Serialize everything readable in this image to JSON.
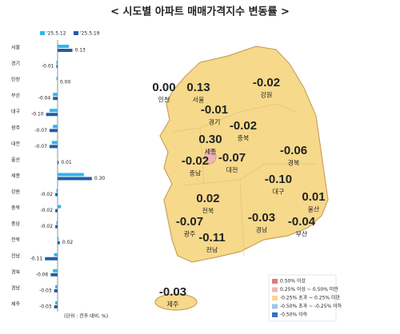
{
  "title": "< 시도별 아파트 매매가격지수 변동률 >",
  "chart_data": {
    "type": "hbar",
    "categories": [
      "서울",
      "경기",
      "인천",
      "부산",
      "대구",
      "광주",
      "대전",
      "울산",
      "세종",
      "강원",
      "충북",
      "충남",
      "전북",
      "전남",
      "경북",
      "경남",
      "제주"
    ],
    "series": [
      {
        "name": "'25.5.12",
        "color": "#35b4ec",
        "values": [
          0.1,
          -0.01,
          -0.01,
          -0.04,
          -0.07,
          -0.04,
          -0.05,
          0.0,
          0.23,
          -0.01,
          0.03,
          -0.01,
          0.01,
          -0.03,
          -0.04,
          -0.02,
          -0.02
        ]
      },
      {
        "name": "'25.5.19",
        "color": "#1f5fa8",
        "values": [
          0.13,
          -0.01,
          0.0,
          -0.04,
          -0.1,
          -0.07,
          -0.07,
          0.01,
          0.3,
          -0.02,
          -0.02,
          -0.02,
          0.02,
          -0.11,
          -0.06,
          -0.03,
          -0.03
        ],
        "value_labels": [
          "0.13",
          "-0.01",
          "0.00",
          "-0.04",
          "-0.10",
          "-0.07",
          "-0.07",
          "0.01",
          "0.30",
          "-0.02",
          "-0.02",
          "-0.02",
          "0.02",
          "-0.11",
          "-0.06",
          "-0.03",
          "-0.03"
        ]
      }
    ],
    "xlim": [
      -0.3,
      0.35
    ],
    "note": "(단위 : 전주 대비, %)"
  },
  "map": {
    "regions": [
      {
        "name": "인천",
        "value_label": "0.00"
      },
      {
        "name": "서울",
        "value_label": "0.13"
      },
      {
        "name": "경기",
        "value_label": "-0.01"
      },
      {
        "name": "강원",
        "value_label": "-0.02"
      },
      {
        "name": "충북",
        "value_label": "-0.02"
      },
      {
        "name": "세종",
        "value_label": "0.30"
      },
      {
        "name": "대전",
        "value_label": "-0.07"
      },
      {
        "name": "충남",
        "value_label": "-0.02"
      },
      {
        "name": "경북",
        "value_label": "-0.06"
      },
      {
        "name": "대구",
        "value_label": "-0.10"
      },
      {
        "name": "울산",
        "value_label": "0.01"
      },
      {
        "name": "전북",
        "value_label": "0.02"
      },
      {
        "name": "경남",
        "value_label": "-0.03"
      },
      {
        "name": "부산",
        "value_label": "-0.04"
      },
      {
        "name": "광주",
        "value_label": "-0.07"
      },
      {
        "name": "전남",
        "value_label": "-0.11"
      },
      {
        "name": "제주",
        "value_label": "-0.03"
      }
    ],
    "legend": [
      {
        "label": "0.50% 이상",
        "color": "#e07878"
      },
      {
        "label": "0.25% 이상 ~ 0.50% 미만",
        "color": "#f0b4b8"
      },
      {
        "label": "-0.25% 초과 ~ 0.25% 미만",
        "color": "#f6d98b"
      },
      {
        "label": "-0.50% 초과 ~ -0.25% 이하",
        "color": "#9fc5e8"
      },
      {
        "label": "-0.50% 이하",
        "color": "#3c6fbf"
      }
    ]
  }
}
